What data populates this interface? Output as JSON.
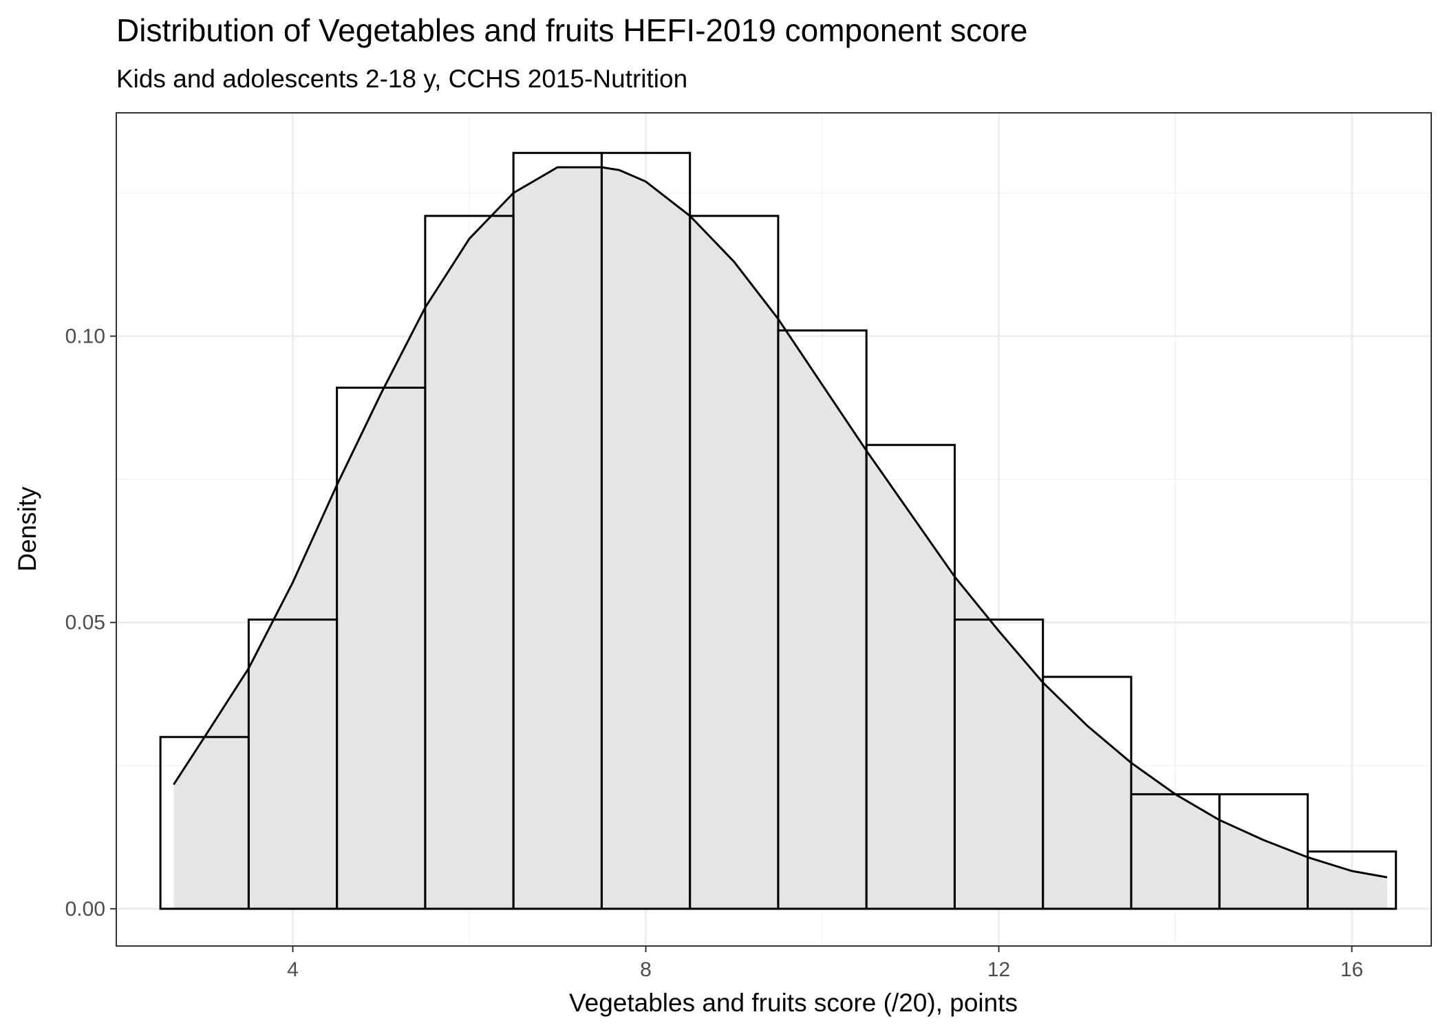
{
  "chart_data": {
    "type": "histogram",
    "title": "Distribution of Vegetables and fruits HEFI-2019 component score",
    "subtitle": "Kids and adolescents 2-18 y, CCHS 2015-Nutrition",
    "xlabel": "Vegetables and fruits score (/20), points",
    "ylabel": "Density",
    "xlim": [
      2.0,
      16.9
    ],
    "ylim": [
      -0.0065,
      0.139
    ],
    "x_ticks": [
      4,
      8,
      12,
      16
    ],
    "x_tick_labels": [
      "4",
      "8",
      "12",
      "16"
    ],
    "y_ticks": [
      0.0,
      0.05,
      0.1
    ],
    "y_tick_labels": [
      "0.00",
      "0.05",
      "0.10"
    ],
    "grid": true,
    "bins": [
      {
        "x0": 2.5,
        "x1": 3.5,
        "density": 0.03
      },
      {
        "x0": 3.5,
        "x1": 4.5,
        "density": 0.0505
      },
      {
        "x0": 4.5,
        "x1": 5.5,
        "density": 0.091
      },
      {
        "x0": 5.5,
        "x1": 6.5,
        "density": 0.121
      },
      {
        "x0": 6.5,
        "x1": 7.5,
        "density": 0.132
      },
      {
        "x0": 7.5,
        "x1": 8.5,
        "density": 0.132
      },
      {
        "x0": 8.5,
        "x1": 9.5,
        "density": 0.121
      },
      {
        "x0": 9.5,
        "x1": 10.5,
        "density": 0.101
      },
      {
        "x0": 10.5,
        "x1": 11.5,
        "density": 0.081
      },
      {
        "x0": 11.5,
        "x1": 12.5,
        "density": 0.0505
      },
      {
        "x0": 12.5,
        "x1": 13.5,
        "density": 0.0405
      },
      {
        "x0": 13.5,
        "x1": 14.5,
        "density": 0.02
      },
      {
        "x0": 14.5,
        "x1": 15.5,
        "density": 0.02
      },
      {
        "x0": 15.5,
        "x1": 16.5,
        "density": 0.01
      }
    ],
    "density_curve": {
      "x": [
        2.65,
        3.0,
        3.5,
        4.0,
        4.5,
        5.0,
        5.5,
        6.0,
        6.5,
        7.0,
        7.5,
        7.7,
        8.0,
        8.5,
        9.0,
        9.5,
        10.0,
        10.5,
        11.0,
        11.5,
        12.0,
        12.5,
        13.0,
        13.5,
        14.0,
        14.5,
        15.0,
        15.5,
        16.0,
        16.4
      ],
      "y": [
        0.0217,
        0.03,
        0.042,
        0.057,
        0.074,
        0.09,
        0.105,
        0.117,
        0.125,
        0.1295,
        0.1295,
        0.129,
        0.127,
        0.121,
        0.113,
        0.103,
        0.0915,
        0.08,
        0.069,
        0.058,
        0.0485,
        0.0395,
        0.032,
        0.0255,
        0.02,
        0.0155,
        0.012,
        0.009,
        0.0066,
        0.0055
      ]
    },
    "colors": {
      "panel_border": "#333333",
      "grid_major": "#ebebeb",
      "grid_minor": "#f3f3f3",
      "density_fill": "#e5e5e5",
      "bar_outline": "#000000",
      "curve": "#000000"
    }
  }
}
